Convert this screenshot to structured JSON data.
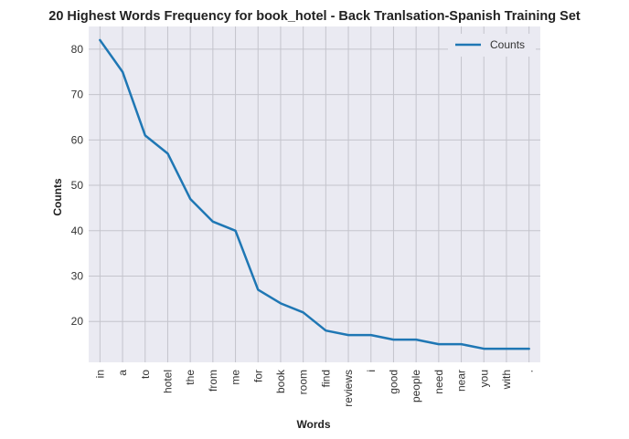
{
  "chart_data": {
    "type": "line",
    "title": "20 Highest Words Frequency for book_hotel - Back Tranlsation-Spanish Training Set",
    "xlabel": "Words",
    "ylabel": "Counts",
    "categories": [
      "in",
      "a",
      "to",
      "hotel",
      "the",
      "from",
      "me",
      "for",
      "book",
      "room",
      "find",
      "reviews",
      "i",
      "good",
      "people",
      "need",
      "near",
      "you",
      "with",
      "."
    ],
    "series": [
      {
        "name": "Counts",
        "values": [
          82,
          75,
          61,
          57,
          47,
          42,
          40,
          27,
          24,
          22,
          18,
          17,
          17,
          16,
          16,
          15,
          15,
          14,
          14,
          14
        ]
      }
    ],
    "ylim": [
      11,
      85
    ],
    "yticks": [
      20,
      30,
      40,
      50,
      60,
      70,
      80
    ],
    "grid": true,
    "legend": "top-right",
    "colors": {
      "line": "#1f77b4",
      "background": "#eaeaf2",
      "grid": "#c4c4cc"
    }
  }
}
